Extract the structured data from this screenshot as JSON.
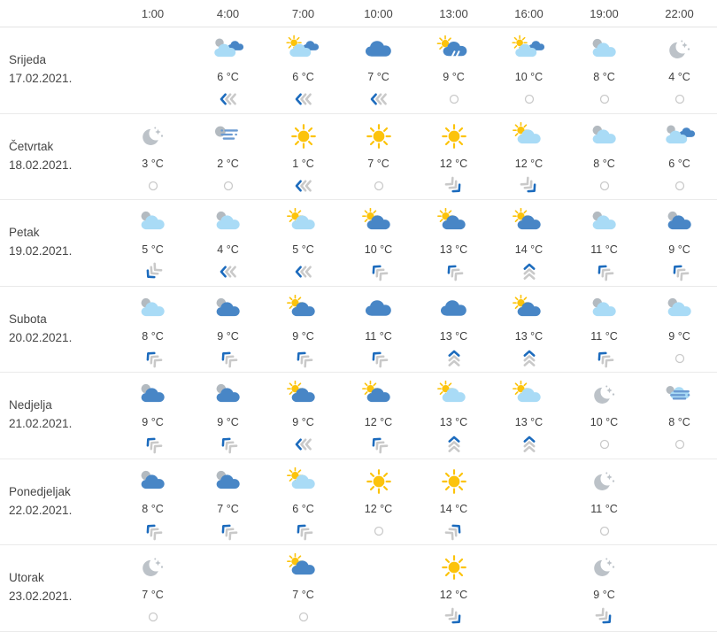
{
  "colors": {
    "text": "#464646",
    "light_cloud": "#a9dbf6",
    "dark_cloud": "#4886c6",
    "gray_cloud": "#b3bac0",
    "moon": "#bcc2c8",
    "sun": "#fcc30b",
    "wind_blue": "#1c6bbd",
    "wind_gray": "#c9c9c9",
    "fog_line": "#6b9bd2",
    "rain_streak": "#ffffff",
    "row_border": "#eaeaea"
  },
  "icon_types": {
    "sun": "sunny",
    "moon-stars": "clear night",
    "cloud-dark": "cloudy (dark cloud)",
    "cloud-gray-light": "mostly cloudy (light cloud)",
    "cloud-gray-dark": "mostly cloudy (dark cloud)",
    "cloud-gray-light-dark": "overcast mixed clouds",
    "sun-cloud-light": "partly sunny (light cloud)",
    "sun-cloud-dark": "partly sunny (dark cloud)",
    "sun-cloud-light-dark": "partly sunny mixed clouds",
    "sun-rain-dark": "sun with rain shower",
    "fog-gray": "fog at night",
    "fog-light": "fog with cloud"
  },
  "wind_types": {
    "calm": "calm (circle)",
    "left": "wind from east (chevrons left)",
    "up-left": "chevrons up-left",
    "up": "chevrons up",
    "up-right": "chevrons up-right",
    "down-right": "chevrons down-right",
    "down-left": "chevrons down-left"
  },
  "table": {
    "time_headers": [
      "1:00",
      "4:00",
      "7:00",
      "10:00",
      "13:00",
      "16:00",
      "19:00",
      "22:00"
    ],
    "days": [
      {
        "name": "Srijeda",
        "date": "17.02.2021.",
        "cells": [
          {},
          {
            "icon": "cloud-gray-light-dark",
            "temp": "6 °C",
            "wind": "left"
          },
          {
            "icon": "sun-cloud-light-dark",
            "temp": "6 °C",
            "wind": "left"
          },
          {
            "icon": "cloud-dark",
            "temp": "7 °C",
            "wind": "left"
          },
          {
            "icon": "sun-rain-dark",
            "temp": "9 °C",
            "wind": "calm"
          },
          {
            "icon": "sun-cloud-light-dark",
            "temp": "10 °C",
            "wind": "calm"
          },
          {
            "icon": "cloud-gray-light",
            "temp": "8 °C",
            "wind": "calm"
          },
          {
            "icon": "moon-stars",
            "temp": "4 °C",
            "wind": "calm"
          }
        ]
      },
      {
        "name": "Četvrtak",
        "date": "18.02.2021.",
        "cells": [
          {
            "icon": "moon-stars",
            "temp": "3 °C",
            "wind": "calm"
          },
          {
            "icon": "fog-gray",
            "temp": "2 °C",
            "wind": "calm"
          },
          {
            "icon": "sun",
            "temp": "1 °C",
            "wind": "left"
          },
          {
            "icon": "sun",
            "temp": "7 °C",
            "wind": "calm"
          },
          {
            "icon": "sun",
            "temp": "12 °C",
            "wind": "down-right"
          },
          {
            "icon": "sun-cloud-light",
            "temp": "12 °C",
            "wind": "down-right"
          },
          {
            "icon": "cloud-gray-light",
            "temp": "8 °C",
            "wind": "calm"
          },
          {
            "icon": "cloud-gray-light-dark",
            "temp": "6 °C",
            "wind": "calm"
          }
        ]
      },
      {
        "name": "Petak",
        "date": "19.02.2021.",
        "cells": [
          {
            "icon": "cloud-gray-light",
            "temp": "5 °C",
            "wind": "down-left"
          },
          {
            "icon": "cloud-gray-light",
            "temp": "4 °C",
            "wind": "left"
          },
          {
            "icon": "sun-cloud-light",
            "temp": "5 °C",
            "wind": "left"
          },
          {
            "icon": "sun-cloud-dark",
            "temp": "10 °C",
            "wind": "up-left"
          },
          {
            "icon": "sun-cloud-dark",
            "temp": "13 °C",
            "wind": "up-left"
          },
          {
            "icon": "sun-cloud-dark",
            "temp": "14 °C",
            "wind": "up"
          },
          {
            "icon": "cloud-gray-light",
            "temp": "11 °C",
            "wind": "up-left"
          },
          {
            "icon": "cloud-gray-dark",
            "temp": "9 °C",
            "wind": "up-left"
          }
        ]
      },
      {
        "name": "Subota",
        "date": "20.02.2021.",
        "cells": [
          {
            "icon": "cloud-gray-light",
            "temp": "8 °C",
            "wind": "up-left"
          },
          {
            "icon": "cloud-gray-dark",
            "temp": "9 °C",
            "wind": "up-left"
          },
          {
            "icon": "sun-cloud-dark",
            "temp": "9 °C",
            "wind": "up-left"
          },
          {
            "icon": "cloud-dark",
            "temp": "11 °C",
            "wind": "up-left"
          },
          {
            "icon": "cloud-dark",
            "temp": "13 °C",
            "wind": "up"
          },
          {
            "icon": "sun-cloud-dark",
            "temp": "13 °C",
            "wind": "up"
          },
          {
            "icon": "cloud-gray-light",
            "temp": "11 °C",
            "wind": "up-left"
          },
          {
            "icon": "cloud-gray-light",
            "temp": "9 °C",
            "wind": "calm"
          }
        ]
      },
      {
        "name": "Nedjelja",
        "date": "21.02.2021.",
        "cells": [
          {
            "icon": "cloud-gray-dark",
            "temp": "9 °C",
            "wind": "up-left"
          },
          {
            "icon": "cloud-gray-dark",
            "temp": "9 °C",
            "wind": "up-left"
          },
          {
            "icon": "sun-cloud-dark",
            "temp": "9 °C",
            "wind": "left"
          },
          {
            "icon": "sun-cloud-dark",
            "temp": "12 °C",
            "wind": "up-left"
          },
          {
            "icon": "sun-cloud-light",
            "temp": "13 °C",
            "wind": "up"
          },
          {
            "icon": "sun-cloud-light",
            "temp": "13 °C",
            "wind": "up"
          },
          {
            "icon": "moon-stars",
            "temp": "10 °C",
            "wind": "calm"
          },
          {
            "icon": "fog-light",
            "temp": "8 °C",
            "wind": "calm"
          }
        ]
      },
      {
        "name": "Ponedjeljak",
        "date": "22.02.2021.",
        "cells": [
          {
            "icon": "cloud-gray-dark",
            "temp": "8 °C",
            "wind": "up-left"
          },
          {
            "icon": "cloud-gray-dark",
            "temp": "7 °C",
            "wind": "up-left"
          },
          {
            "icon": "sun-cloud-light",
            "temp": "6 °C",
            "wind": "up-left"
          },
          {
            "icon": "sun",
            "temp": "12 °C",
            "wind": "calm"
          },
          {
            "icon": "sun",
            "temp": "14 °C",
            "wind": "up-right"
          },
          {},
          {
            "icon": "moon-stars",
            "temp": "11 °C",
            "wind": "calm"
          },
          {}
        ]
      },
      {
        "name": "Utorak",
        "date": "23.02.2021.",
        "cells": [
          {
            "icon": "moon-stars",
            "temp": "7 °C",
            "wind": "calm"
          },
          {},
          {
            "icon": "sun-cloud-dark",
            "temp": "7 °C",
            "wind": "calm"
          },
          {},
          {
            "icon": "sun",
            "temp": "12 °C",
            "wind": "down-right"
          },
          {},
          {
            "icon": "moon-stars",
            "temp": "9 °C",
            "wind": "down-right"
          },
          {}
        ]
      }
    ]
  }
}
